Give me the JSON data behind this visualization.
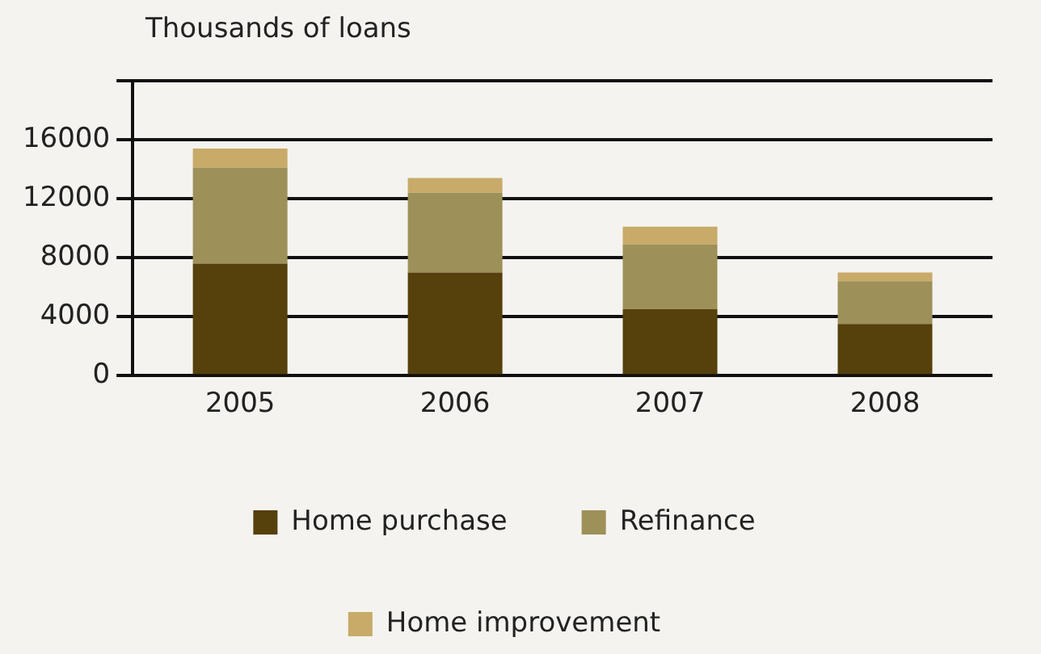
{
  "chart_data": {
    "type": "bar",
    "stacked": true,
    "ylabel": "Thousands of loans",
    "categories": [
      "2005",
      "2006",
      "2007",
      "2008"
    ],
    "series": [
      {
        "name": "Home purchase",
        "color": "#56400b",
        "values": [
          7600,
          7000,
          4500,
          3500
        ]
      },
      {
        "name": "Refinance",
        "color": "#9d9059",
        "values": [
          6500,
          5400,
          4400,
          2900
        ]
      },
      {
        "name": "Home improvement",
        "color": "#c8aa69",
        "values": [
          1300,
          1000,
          1200,
          600
        ]
      }
    ],
    "ylim": [
      0,
      20000
    ],
    "yticks": [
      0,
      4000,
      8000,
      12000,
      16000,
      {
        "value": 20000,
        "label": null
      }
    ],
    "grid": "y",
    "legend": "bottom"
  }
}
